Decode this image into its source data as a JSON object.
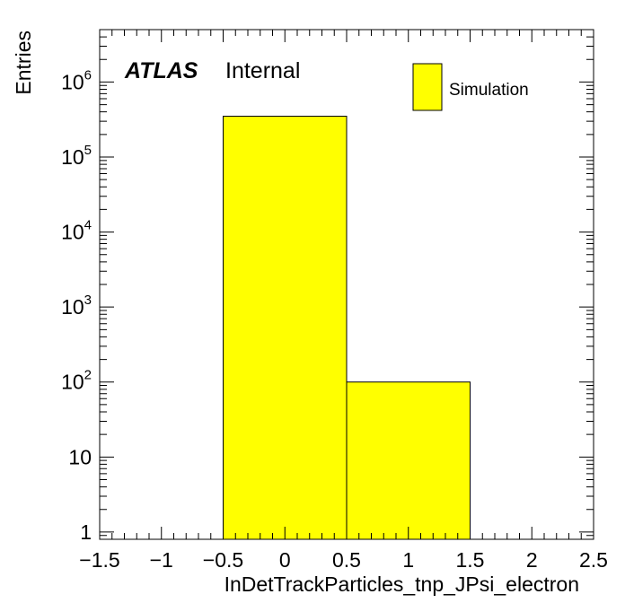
{
  "chart_data": {
    "type": "bar",
    "histogram": true,
    "xlabel": "InDetTrackParticles_tnp_JPsi_electron",
    "ylabel": "Entries",
    "xlim": [
      -1.5,
      2.5
    ],
    "ylim": [
      0.8,
      5000000
    ],
    "yscale": "log",
    "bins": [
      {
        "low": -0.5,
        "high": 0.5,
        "value": 350000
      },
      {
        "low": 0.5,
        "high": 1.5,
        "value": 100
      }
    ],
    "x_ticks": [
      {
        "value": -1.5,
        "label": "−1.5"
      },
      {
        "value": -1,
        "label": "−1"
      },
      {
        "value": -0.5,
        "label": "−0.5"
      },
      {
        "value": 0,
        "label": "0"
      },
      {
        "value": 0.5,
        "label": "0.5"
      },
      {
        "value": 1,
        "label": "1"
      },
      {
        "value": 1.5,
        "label": "1.5"
      },
      {
        "value": 2,
        "label": "2"
      },
      {
        "value": 2.5,
        "label": "2.5"
      }
    ],
    "y_ticks": [
      {
        "value": 1,
        "base": "1",
        "exp": ""
      },
      {
        "value": 10,
        "base": "10",
        "exp": ""
      },
      {
        "value": 100,
        "base": "10",
        "exp": "2"
      },
      {
        "value": 1000,
        "base": "10",
        "exp": "3"
      },
      {
        "value": 10000,
        "base": "10",
        "exp": "4"
      },
      {
        "value": 100000,
        "base": "10",
        "exp": "5"
      },
      {
        "value": 1000000,
        "base": "10",
        "exp": "6"
      }
    ],
    "atlas_label": "ATLAS",
    "atlas_sublabel": "Internal",
    "legend": [
      {
        "name": "Simulation",
        "color": "#ffff00"
      }
    ],
    "legend_position": "top-right",
    "fill_color": "#ffff00",
    "line_color": "#000000",
    "grid": false
  }
}
